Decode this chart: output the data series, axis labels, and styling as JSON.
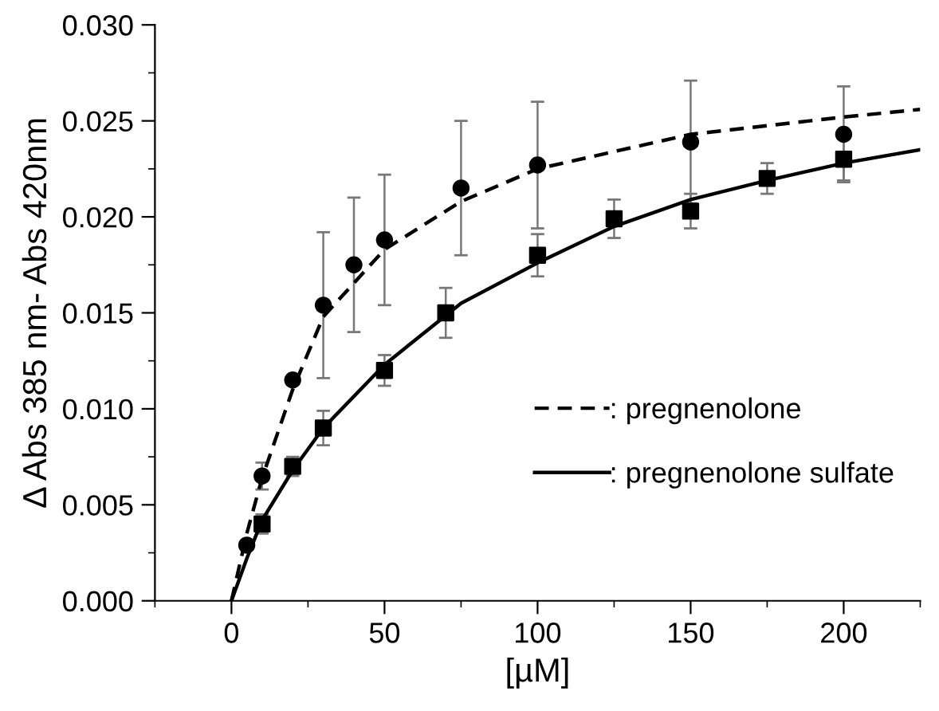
{
  "chart_data": {
    "type": "scatter",
    "xlabel": "[µM]",
    "ylabel": "Δ Abs 385 nm- Abs 420nm",
    "xlim": [
      -25,
      225
    ],
    "xticks": [
      0,
      50,
      100,
      150,
      200
    ],
    "ylim": [
      0,
      0.03
    ],
    "yticks": [
      {
        "value": 0,
        "label": "0.000"
      },
      {
        "value": 0.005,
        "label": "0.005"
      },
      {
        "value": 0.01,
        "label": "0.010"
      },
      {
        "value": 0.015,
        "label": "0.015"
      },
      {
        "value": 0.02,
        "label": "0.020"
      },
      {
        "value": 0.025,
        "label": "0.025"
      },
      {
        "value": 0.03,
        "label": "0.030"
      }
    ],
    "grid": false,
    "legend": "bottom right",
    "series": [
      {
        "marker": "circle",
        "color": "#000000",
        "x": [
          5,
          10,
          20,
          30,
          40,
          50,
          75,
          100,
          150,
          200
        ],
        "values": [
          0.0029,
          0.0065,
          0.0115,
          0.0154,
          0.0175,
          0.0188,
          0.0215,
          0.0227,
          0.0239,
          0.0243
        ],
        "errors": [
          null,
          0.0007,
          null,
          0.0038,
          0.0035,
          0.0034,
          0.0035,
          0.0033,
          0.0032,
          0.0025
        ]
      },
      {
        "marker": "square",
        "color": "#000000",
        "x": [
          10,
          20,
          30,
          50,
          70,
          100,
          125,
          150,
          175,
          200
        ],
        "values": [
          0.004,
          0.007,
          0.009,
          0.012,
          0.015,
          0.018,
          0.0199,
          0.0203,
          0.022,
          0.023
        ],
        "errors": [
          0.0005,
          0.0005,
          0.0009,
          0.0008,
          0.0013,
          0.0011,
          0.001,
          0.0009,
          0.0008,
          0.0011
        ]
      },
      {
        "type": "line",
        "name": ": pregnenolone",
        "line_style": "dashed",
        "color": "#000000",
        "x": [
          0,
          5,
          10,
          20,
          30,
          50,
          75,
          100,
          150,
          200,
          225
        ],
        "values": [
          0,
          0.0035,
          0.0064,
          0.011,
          0.0148,
          0.0183,
          0.0208,
          0.0225,
          0.0243,
          0.0252,
          0.0256
        ]
      },
      {
        "type": "line",
        "name": ": pregnenolone sulfate",
        "line_style": "solid",
        "color": "#000000",
        "x": [
          0,
          5,
          10,
          20,
          30,
          50,
          75,
          100,
          125,
          150,
          175,
          200,
          225
        ],
        "values": [
          0,
          0.0022,
          0.0042,
          0.0068,
          0.009,
          0.0123,
          0.0155,
          0.0176,
          0.0195,
          0.0209,
          0.0219,
          0.0228,
          0.0235
        ]
      }
    ]
  }
}
